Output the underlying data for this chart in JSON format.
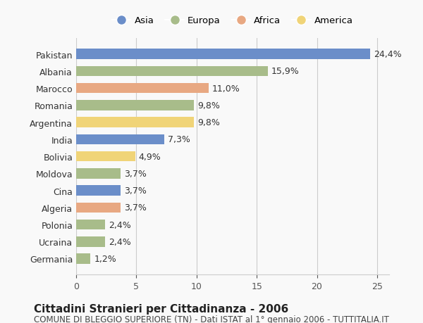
{
  "countries": [
    "Germania",
    "Ucraina",
    "Polonia",
    "Algeria",
    "Cina",
    "Moldova",
    "Bolivia",
    "India",
    "Argentina",
    "Romania",
    "Marocco",
    "Albania",
    "Pakistan"
  ],
  "values": [
    1.2,
    2.4,
    2.4,
    3.7,
    3.7,
    3.7,
    4.9,
    7.3,
    9.8,
    9.8,
    11.0,
    15.9,
    24.4
  ],
  "labels": [
    "1,2%",
    "2,4%",
    "2,4%",
    "3,7%",
    "3,7%",
    "3,7%",
    "4,9%",
    "7,3%",
    "9,8%",
    "9,8%",
    "11,0%",
    "15,9%",
    "24,4%"
  ],
  "continents": [
    "Europa",
    "Europa",
    "Europa",
    "Africa",
    "Asia",
    "Europa",
    "America",
    "Asia",
    "America",
    "Europa",
    "Africa",
    "Europa",
    "Asia"
  ],
  "continent_colors": {
    "Asia": "#6b8ec9",
    "Europa": "#a8bc8a",
    "Africa": "#e8a882",
    "America": "#f0d478"
  },
  "legend_order": [
    "Asia",
    "Europa",
    "Africa",
    "America"
  ],
  "title": "Cittadini Stranieri per Cittadinanza - 2006",
  "subtitle": "COMUNE DI BLEGGIO SUPERIORE (TN) - Dati ISTAT al 1° gennaio 2006 - TUTTITALIA.IT",
  "xlim": [
    0,
    26
  ],
  "xticks": [
    0,
    5,
    10,
    15,
    20,
    25
  ],
  "bg_color": "#f9f9f9",
  "grid_color": "#cccccc",
  "label_fontsize": 9,
  "tick_fontsize": 9,
  "title_fontsize": 11,
  "subtitle_fontsize": 8.5
}
